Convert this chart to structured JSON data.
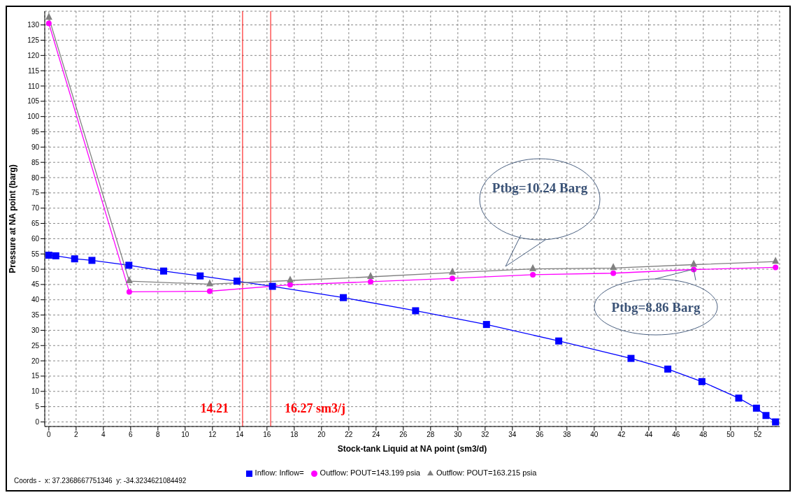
{
  "chart_data": {
    "type": "line",
    "xlabel": "Stock-tank Liquid at NA point (sm3/d)",
    "ylabel": "Pressure at NA point (barg)",
    "xlim": [
      -0.3,
      53.6
    ],
    "xticks": [
      0,
      2,
      4,
      6,
      8,
      10,
      12,
      14,
      16,
      18,
      20,
      22,
      24,
      26,
      28,
      30,
      32,
      34,
      36,
      38,
      40,
      42,
      44,
      46,
      48,
      50,
      52
    ],
    "ylim": [
      -1.5,
      134.5
    ],
    "yticks": [
      0,
      5,
      10,
      15,
      20,
      25,
      30,
      35,
      40,
      45,
      50,
      55,
      60,
      65,
      70,
      75,
      80,
      85,
      90,
      95,
      100,
      105,
      110,
      115,
      120,
      125,
      130
    ],
    "grid": true,
    "legend": "bottom",
    "line_style": "solid",
    "series": [
      {
        "name": "Inflow: Inflow=",
        "color": "#0000ff",
        "marker": "square",
        "x": [
          0,
          0.51,
          1.89,
          3.16,
          5.87,
          8.42,
          11.1,
          13.8,
          16.4,
          21.6,
          26.9,
          32.1,
          37.4,
          42.7,
          45.4,
          47.9,
          50.6,
          51.9,
          52.6,
          53.3
        ],
        "values": [
          54.6,
          54.4,
          53.4,
          52.9,
          51.3,
          49.4,
          47.8,
          46.1,
          44.4,
          40.7,
          36.4,
          31.9,
          26.5,
          20.8,
          17.3,
          13.2,
          7.8,
          4.5,
          2.1,
          0
        ]
      },
      {
        "name": "Outflow: POUT=143.199 psia",
        "color": "#ff00ff",
        "marker": "circle",
        "x": [
          0,
          5.9,
          11.8,
          17.7,
          23.6,
          29.6,
          35.5,
          41.4,
          47.3,
          53.3
        ],
        "values": [
          130.5,
          42.6,
          42.8,
          44.9,
          45.9,
          47,
          48.2,
          48.7,
          49.9,
          50.6
        ]
      },
      {
        "name": "Outflow: POUT=163.215 psia",
        "color": "#808080",
        "marker": "triangle",
        "x": [
          0,
          5.9,
          11.8,
          17.7,
          23.6,
          29.6,
          35.5,
          41.4,
          47.3,
          53.3
        ],
        "values": [
          132.4,
          46.1,
          45.1,
          46.3,
          47.5,
          48.9,
          50.1,
          50.4,
          51.5,
          52.5
        ]
      }
    ],
    "ref_lines": [
      {
        "axis": "x",
        "value": 14.21,
        "label": "14.21",
        "color": "#ff0000"
      },
      {
        "axis": "x",
        "value": 16.27,
        "label": "16.27 sm3/j",
        "color": "#ff0000"
      }
    ],
    "annotations": [
      "Ptbg=10.24 Barg",
      "Ptbg=8.86 Barg",
      "Coords -  x: 37.2368667751346  y: -34.3234621084492"
    ]
  }
}
